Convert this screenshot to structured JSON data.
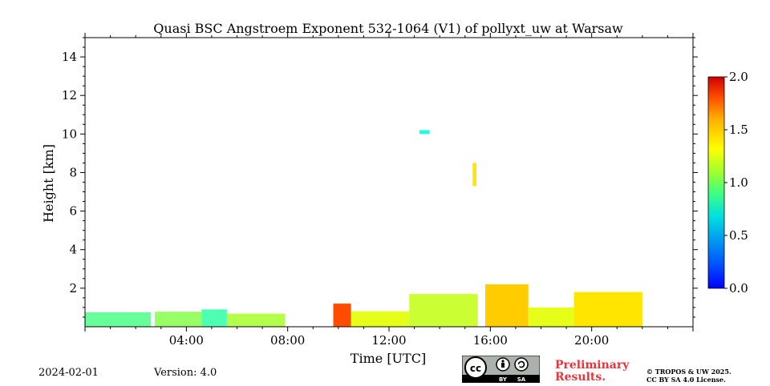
{
  "chart_data": {
    "type": "heatmap",
    "title": "Quasi BSC Angstroem Exponent 532-1064 (V1) of pollyxt_uw at Warsaw",
    "xlabel": "Time [UTC]",
    "ylabel": "Height [km]",
    "x_unit": "hours UTC",
    "xlim": [
      0,
      24
    ],
    "ylim": [
      0,
      15
    ],
    "x_ticks": [
      {
        "value": 4,
        "label": "04:00"
      },
      {
        "value": 8,
        "label": "08:00"
      },
      {
        "value": 12,
        "label": "12:00"
      },
      {
        "value": 16,
        "label": "16:00"
      },
      {
        "value": 20,
        "label": "20:00"
      }
    ],
    "y_ticks": [
      {
        "value": 2,
        "label": "2"
      },
      {
        "value": 4,
        "label": "4"
      },
      {
        "value": 6,
        "label": "6"
      },
      {
        "value": 8,
        "label": "8"
      },
      {
        "value": 10,
        "label": "10"
      },
      {
        "value": 12,
        "label": "12"
      },
      {
        "value": 14,
        "label": "14"
      }
    ],
    "colorbar": {
      "range": [
        0.0,
        2.0
      ],
      "ticks": [
        "0.0",
        "0.5",
        "1.0",
        "1.5",
        "2.0"
      ],
      "colormap": "jet"
    },
    "series": [
      {
        "x_start": 0.0,
        "x_end": 2.6,
        "top_km": 0.75,
        "value": 0.95
      },
      {
        "x_start": 2.6,
        "x_end": 2.75,
        "top_km": 0.0,
        "value": null
      },
      {
        "x_start": 2.75,
        "x_end": 4.6,
        "top_km": 0.78,
        "value": 1.05
      },
      {
        "x_start": 4.6,
        "x_end": 5.6,
        "top_km": 0.9,
        "value": 0.9
      },
      {
        "x_start": 5.6,
        "x_end": 7.9,
        "top_km": 0.68,
        "value": 1.1
      },
      {
        "x_start": 9.8,
        "x_end": 10.5,
        "top_km": 1.2,
        "value": 1.6
      },
      {
        "x_start": 10.5,
        "x_end": 12.8,
        "top_km": 0.8,
        "value": 1.2
      },
      {
        "x_start": 12.8,
        "x_end": 15.5,
        "top_km": 1.7,
        "value": 1.15
      },
      {
        "x_start": 15.8,
        "x_end": 17.5,
        "top_km": 2.2,
        "value": 1.35
      },
      {
        "x_start": 17.5,
        "x_end": 19.3,
        "top_km": 1.0,
        "value": 1.2
      },
      {
        "x_start": 19.3,
        "x_end": 22.0,
        "top_km": 1.8,
        "value": 1.3
      }
    ],
    "features": [
      {
        "x_start": 15.3,
        "x_end": 15.45,
        "bottom_km": 7.3,
        "top_km": 8.5,
        "value": 1.3
      },
      {
        "x_start": 13.2,
        "x_end": 13.6,
        "bottom_km": 10.0,
        "top_km": 10.2,
        "value": 0.8
      }
    ]
  },
  "footer": {
    "date": "2024-02-01",
    "version": "Version: 4.0",
    "preliminary_line1": "Preliminary",
    "preliminary_line2": "Results.",
    "copyright_line1": "© TROPOS & UW 2025.",
    "copyright_line2": "CC BY SA 4.0 License."
  }
}
